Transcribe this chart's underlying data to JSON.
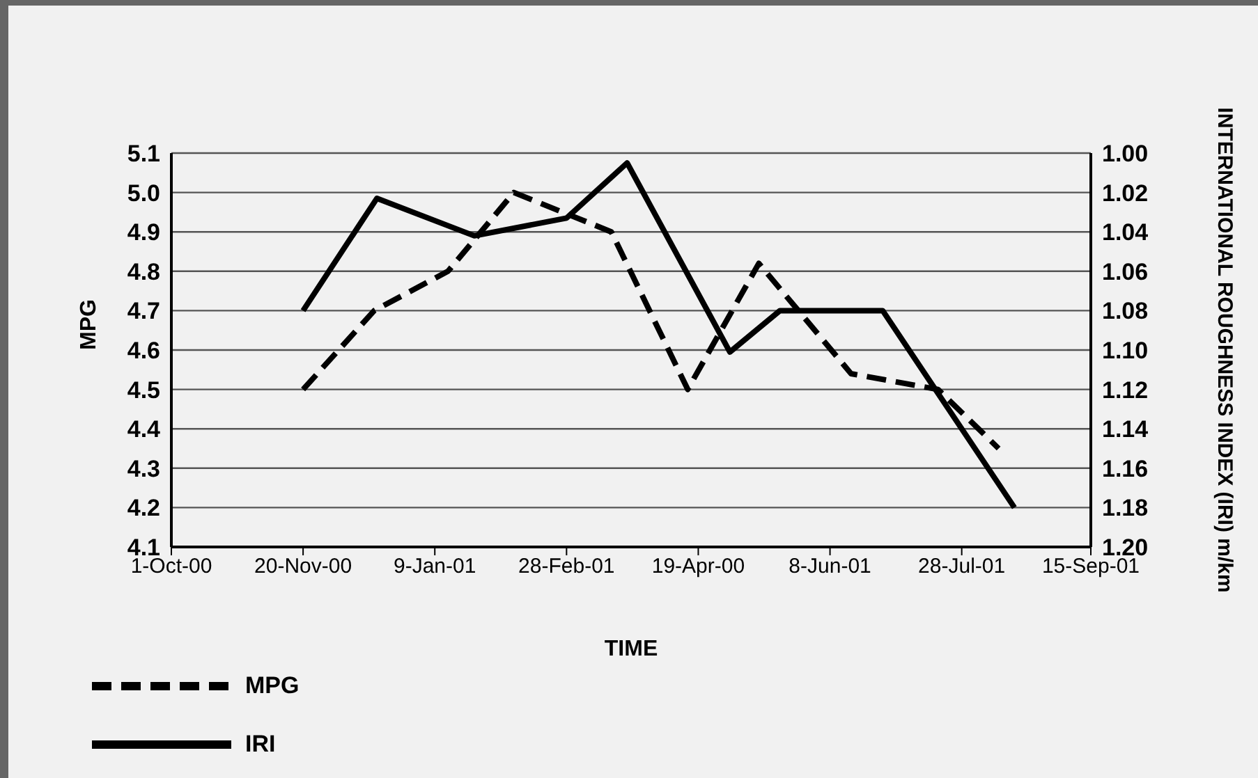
{
  "chart_data": {
    "type": "line",
    "xlabel": "TIME",
    "ylabel": "MPG",
    "y2label": "INTERNATIONAL ROUGHNESS INDEX (IRI) m/km",
    "xlim": [
      "2000-10-01",
      "2001-09-15"
    ],
    "xticks": [
      {
        "value": "2000-10-01",
        "label": "1-Oct-00"
      },
      {
        "value": "2000-11-20",
        "label": "20-Nov-00"
      },
      {
        "value": "2001-01-09",
        "label": "9-Jan-01"
      },
      {
        "value": "2001-02-28",
        "label": "28-Feb-01"
      },
      {
        "value": "2001-04-19",
        "label": "19-Apr-00"
      },
      {
        "value": "2001-06-08",
        "label": "8-Jun-01"
      },
      {
        "value": "2001-07-28",
        "label": "28-Jul-01"
      },
      {
        "value": "2001-09-15",
        "label": "15-Sep-01"
      }
    ],
    "ylim": [
      4.1,
      5.1
    ],
    "yticks": [
      {
        "value": 4.1,
        "label": "4.1"
      },
      {
        "value": 4.2,
        "label": "4.2"
      },
      {
        "value": 4.3,
        "label": "4.3"
      },
      {
        "value": 4.4,
        "label": "4.4"
      },
      {
        "value": 4.5,
        "label": "4.5"
      },
      {
        "value": 4.6,
        "label": "4.6"
      },
      {
        "value": 4.7,
        "label": "4.7"
      },
      {
        "value": 4.8,
        "label": "4.8"
      },
      {
        "value": 4.9,
        "label": "4.9"
      },
      {
        "value": 5.0,
        "label": "5.0"
      },
      {
        "value": 5.1,
        "label": "5.1"
      }
    ],
    "y2lim": [
      1.2,
      1.0
    ],
    "y2ticks": [
      {
        "value": 1.0,
        "label": "1.00"
      },
      {
        "value": 1.02,
        "label": "1.02"
      },
      {
        "value": 1.04,
        "label": "1.04"
      },
      {
        "value": 1.06,
        "label": "1.06"
      },
      {
        "value": 1.08,
        "label": "1.08"
      },
      {
        "value": 1.1,
        "label": "1.10"
      },
      {
        "value": 1.12,
        "label": "1.12"
      },
      {
        "value": 1.14,
        "label": "1.14"
      },
      {
        "value": 1.16,
        "label": "1.16"
      },
      {
        "value": 1.18,
        "label": "1.18"
      },
      {
        "value": 1.2,
        "label": "1.20"
      }
    ],
    "grid": "y",
    "legend": "bottom left",
    "marker": "none",
    "series": [
      {
        "name": "MPG",
        "color": "#000000",
        "line_style": "dashed",
        "x": [
          "2000-11-20",
          "2000-12-17",
          "2001-01-14",
          "2001-02-08",
          "2001-03-17",
          "2001-04-15",
          "2001-05-12",
          "2001-06-16",
          "2001-07-19",
          "2001-08-11"
        ],
        "values": [
          4.5,
          4.7,
          4.8,
          5.0,
          4.9,
          4.5,
          4.82,
          4.54,
          4.5,
          4.35
        ]
      },
      {
        "name": "IRI",
        "color": "#000000",
        "line_style": "solid",
        "axis": "y2",
        "x": [
          "2000-11-20",
          "2000-12-18",
          "2001-01-24",
          "2001-02-28",
          "2001-03-23",
          "2001-05-01",
          "2001-05-20",
          "2001-06-28",
          "2001-08-17"
        ],
        "values": [
          1.08,
          1.023,
          1.042,
          1.033,
          1.005,
          1.101,
          1.08,
          1.08,
          1.18
        ]
      }
    ]
  }
}
